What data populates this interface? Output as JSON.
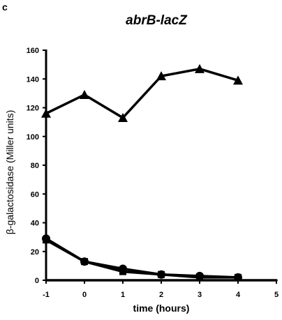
{
  "panel_label": "c",
  "chart_data": {
    "type": "line",
    "title": "abrB-lacZ",
    "xlabel": "time (hours)",
    "ylabel": "β-galactosidase (Miller units)",
    "xlim": [
      -1,
      5
    ],
    "ylim": [
      0,
      160
    ],
    "x_ticks": [
      -1,
      0,
      1,
      2,
      3,
      4,
      5
    ],
    "y_ticks": [
      0,
      20,
      40,
      60,
      80,
      100,
      120,
      140,
      160
    ],
    "grid": false,
    "legend": "none",
    "series": [
      {
        "marker": "triangle",
        "color": "#000000",
        "x": [
          -1,
          0,
          1,
          2,
          3,
          4
        ],
        "y": [
          116,
          129,
          113,
          142,
          147,
          139
        ]
      },
      {
        "marker": "circle",
        "color": "#000000",
        "x": [
          -1,
          0,
          1,
          2,
          3,
          4
        ],
        "y": [
          29,
          13,
          8,
          4,
          3,
          2
        ]
      },
      {
        "marker": "square",
        "color": "#000000",
        "x": [
          -1,
          0,
          1,
          2,
          3,
          4
        ],
        "y": [
          28,
          13,
          6,
          4,
          2,
          2
        ]
      },
      {
        "marker": "none",
        "color": "#000000",
        "x": [
          -1,
          0,
          1,
          2,
          3,
          4,
          5
        ],
        "y": [
          0,
          0,
          0,
          0,
          0,
          0,
          0
        ]
      }
    ]
  }
}
